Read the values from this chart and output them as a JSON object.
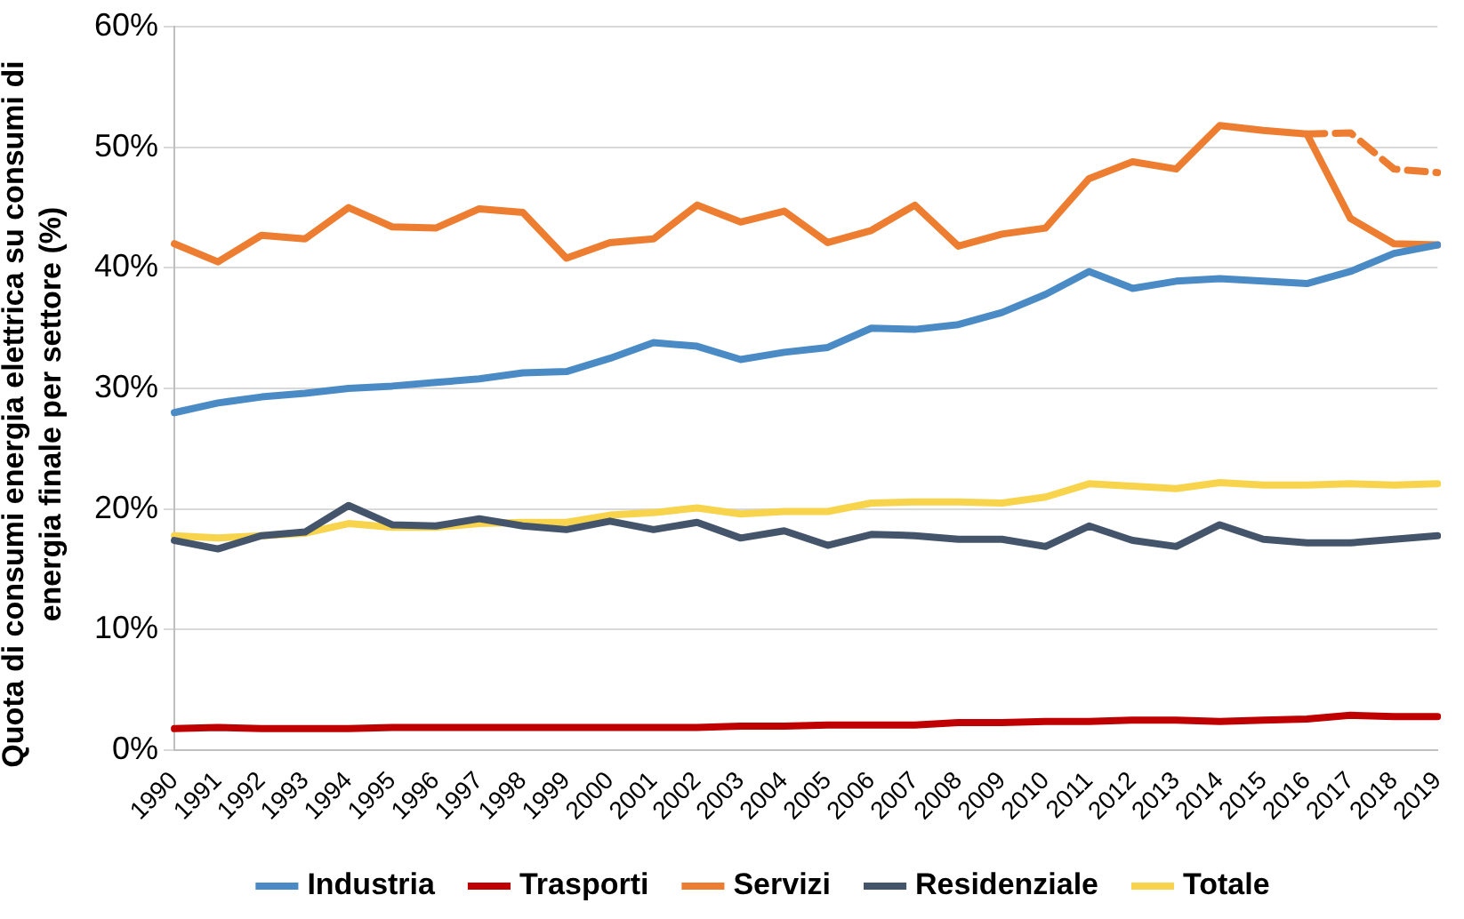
{
  "chart_data": {
    "type": "line",
    "ylabel": "Quota di consumi energia elettrica su consumi di energia finale per settore (%)",
    "categories": [
      "1990",
      "1991",
      "1992",
      "1993",
      "1994",
      "1995",
      "1996",
      "1997",
      "1998",
      "1999",
      "2000",
      "2001",
      "2002",
      "2003",
      "2004",
      "2005",
      "2006",
      "2007",
      "2008",
      "2009",
      "2010",
      "2011",
      "2012",
      "2013",
      "2014",
      "2015",
      "2016",
      "2017",
      "2018",
      "2019"
    ],
    "series": [
      {
        "name": "Industria",
        "color": "#4a8bc6",
        "values": [
          28,
          28.8,
          29.3,
          29.6,
          30,
          30.2,
          30.5,
          30.8,
          31.3,
          31.4,
          32.5,
          33.8,
          33.5,
          32.4,
          33,
          33.4,
          35,
          34.9,
          35.3,
          36.3,
          37.8,
          39.7,
          38.3,
          38.9,
          39.1,
          38.9,
          38.7,
          39.7,
          41.2,
          41.9
        ]
      },
      {
        "name": "Trasporti",
        "color": "#c00000",
        "values": [
          1.8,
          1.9,
          1.8,
          1.8,
          1.8,
          1.9,
          1.9,
          1.9,
          1.9,
          1.9,
          1.9,
          1.9,
          1.9,
          2.0,
          2.0,
          2.1,
          2.1,
          2.1,
          2.3,
          2.3,
          2.4,
          2.4,
          2.5,
          2.5,
          2.4,
          2.5,
          2.6,
          2.9,
          2.8,
          2.8
        ]
      },
      {
        "name": "Servizi",
        "color": "#ed7d31",
        "values": [
          42,
          40.5,
          42.7,
          42.4,
          45,
          43.4,
          43.3,
          44.9,
          44.6,
          40.8,
          42.1,
          42.4,
          45.2,
          43.8,
          44.7,
          42.1,
          43.1,
          45.2,
          41.8,
          42.8,
          43.3,
          47.4,
          48.8,
          48.2,
          51.8,
          51.4,
          51.1,
          44.1,
          42.0,
          41.9
        ]
      },
      {
        "color": "#ed7d31",
        "line_style": "dashed",
        "values": [
          null,
          null,
          null,
          null,
          null,
          null,
          null,
          null,
          null,
          null,
          null,
          null,
          null,
          null,
          null,
          null,
          null,
          null,
          null,
          null,
          null,
          null,
          null,
          null,
          null,
          null,
          51.1,
          51.2,
          48.2,
          47.9
        ]
      },
      {
        "name": "Residenziale",
        "color": "#44546a",
        "values": [
          17.4,
          16.7,
          17.8,
          18.1,
          20.3,
          18.7,
          18.6,
          19.2,
          18.6,
          18.3,
          19.0,
          18.3,
          18.9,
          17.6,
          18.2,
          17.0,
          17.9,
          17.8,
          17.5,
          17.5,
          16.9,
          18.6,
          17.4,
          16.9,
          18.7,
          17.5,
          17.2,
          17.2,
          17.5,
          17.8
        ]
      },
      {
        "name": "Totale",
        "color": "#f7d44c",
        "values": [
          17.8,
          17.6,
          17.8,
          18.0,
          18.8,
          18.5,
          18.5,
          18.8,
          18.9,
          18.9,
          19.5,
          19.7,
          20.1,
          19.6,
          19.8,
          19.8,
          20.5,
          20.6,
          20.6,
          20.5,
          21.0,
          22.1,
          21.9,
          21.7,
          22.2,
          22.0,
          22.0,
          22.1,
          22.0,
          22.1
        ]
      }
    ],
    "ylim": [
      0,
      60
    ],
    "yticks": [
      {
        "value": 0,
        "label": "0%"
      },
      {
        "value": 10,
        "label": "10%"
      },
      {
        "value": 20,
        "label": "20%"
      },
      {
        "value": 30,
        "label": "30%"
      },
      {
        "value": 40,
        "label": "40%"
      },
      {
        "value": 50,
        "label": "50%"
      },
      {
        "value": 60,
        "label": "60%"
      }
    ],
    "grid": "y",
    "legend": "bottom",
    "marker": "none",
    "line_style": "solid"
  }
}
